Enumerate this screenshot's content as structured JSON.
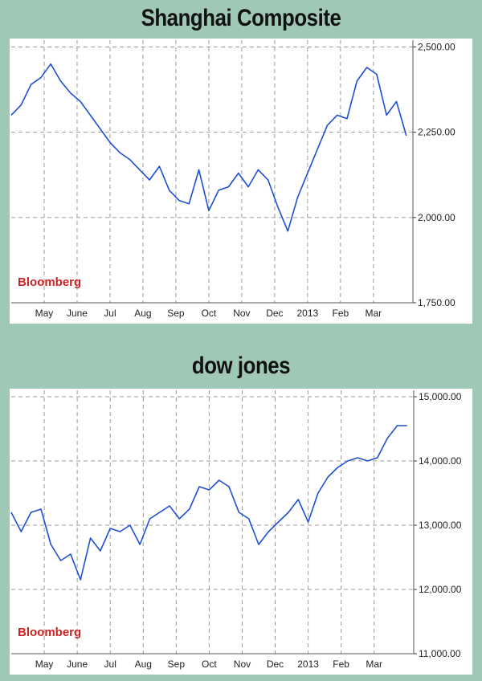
{
  "chart_data": [
    {
      "type": "line",
      "title": "Shanghai Composite",
      "watermark": "Bloomberg",
      "x_tick_labels": [
        "May",
        "June",
        "Jul",
        "Aug",
        "Sep",
        "Oct",
        "Nov",
        "Dec",
        "2013",
        "Feb",
        "Mar"
      ],
      "y_tick_labels": [
        "2,500.00",
        "2,250.00",
        "2,000.00",
        "1,750.00"
      ],
      "y_ticks": [
        2500,
        2250,
        2000,
        1750
      ],
      "ylim": [
        1750,
        2520
      ],
      "xlim": [
        0,
        12.2
      ],
      "grid": true,
      "line_color": "#1f4fd1",
      "series": [
        {
          "x": [
            0,
            0.3,
            0.6,
            0.9,
            1.2,
            1.5,
            1.8,
            2.1,
            2.4,
            2.7,
            3.0,
            3.3,
            3.6,
            3.9,
            4.2,
            4.5,
            4.8,
            5.1,
            5.4,
            5.7,
            6.0,
            6.3,
            6.6,
            6.9,
            7.2,
            7.5,
            7.8,
            8.1,
            8.4,
            8.7,
            9.0,
            9.3,
            9.6,
            9.9,
            10.2,
            10.5,
            10.8,
            11.1,
            11.4,
            11.7,
            12.0
          ],
          "values": [
            2300,
            2330,
            2390,
            2410,
            2450,
            2400,
            2365,
            2340,
            2300,
            2260,
            2220,
            2190,
            2170,
            2140,
            2110,
            2150,
            2080,
            2050,
            2040,
            2140,
            2020,
            2080,
            2090,
            2130,
            2090,
            2140,
            2110,
            2030,
            1960,
            2060,
            2130,
            2200,
            2270,
            2300,
            2290,
            2400,
            2440,
            2420,
            2300,
            2340,
            2240
          ]
        }
      ]
    },
    {
      "type": "line",
      "title": "dow jones",
      "watermark": "Bloomberg",
      "x_tick_labels": [
        "May",
        "June",
        "Jul",
        "Aug",
        "Sep",
        "Oct",
        "Nov",
        "Dec",
        "2013",
        "Feb",
        "Mar"
      ],
      "y_tick_labels": [
        "15,000.00",
        "14,000.00",
        "13,000.00",
        "12,000.00",
        "11,000.00"
      ],
      "y_ticks": [
        15000,
        14000,
        13000,
        12000,
        11000
      ],
      "ylim": [
        11000,
        15100
      ],
      "xlim": [
        0,
        12.2
      ],
      "grid": true,
      "line_color": "#1f4fd1",
      "series": [
        {
          "x": [
            0,
            0.3,
            0.6,
            0.9,
            1.2,
            1.5,
            1.8,
            2.1,
            2.4,
            2.7,
            3.0,
            3.3,
            3.6,
            3.9,
            4.2,
            4.5,
            4.8,
            5.1,
            5.4,
            5.7,
            6.0,
            6.3,
            6.6,
            6.9,
            7.2,
            7.5,
            7.8,
            8.1,
            8.4,
            8.7,
            9.0,
            9.3,
            9.6,
            9.9,
            10.2,
            10.5,
            10.8,
            11.1,
            11.4,
            11.7,
            12.0
          ],
          "values": [
            13200,
            12900,
            13200,
            13250,
            12700,
            12450,
            12550,
            12150,
            12800,
            12600,
            12950,
            12900,
            13000,
            12700,
            13100,
            13200,
            13300,
            13100,
            13250,
            13600,
            13550,
            13700,
            13600,
            13200,
            13100,
            12700,
            12900,
            13050,
            13200,
            13400,
            13050,
            13500,
            13750,
            13900,
            14000,
            14050,
            14000,
            14050,
            14350,
            14550,
            14550
          ]
        }
      ]
    }
  ]
}
